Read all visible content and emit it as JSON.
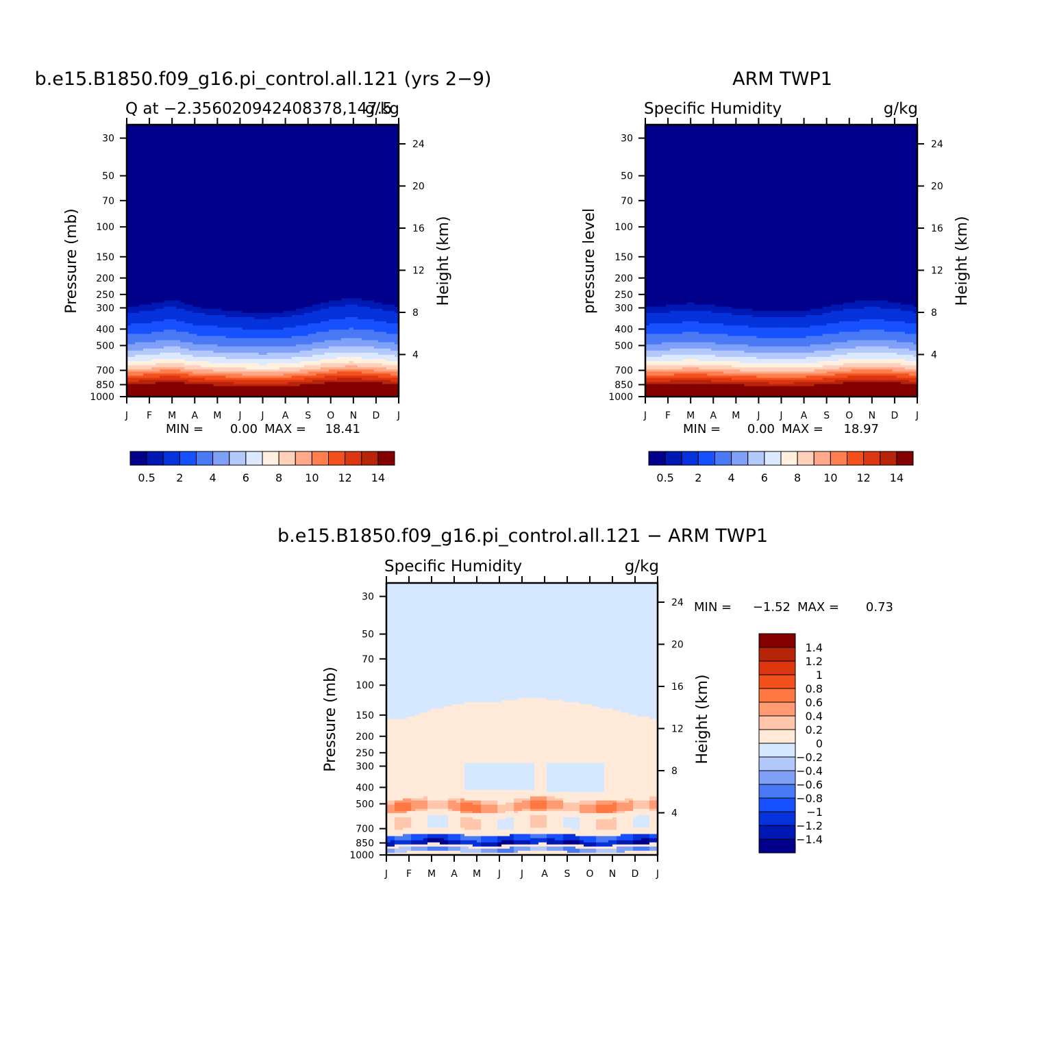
{
  "colormaps": {
    "abs": [
      "#00008b",
      "#0018b4",
      "#0532da",
      "#1750ff",
      "#4a79f5",
      "#7ea0f7",
      "#b3c9fb",
      "#dde9ff",
      "#fff0e0",
      "#ffd1bb",
      "#ffa98a",
      "#ff7f4f",
      "#f4501d",
      "#dc3610",
      "#b8240a",
      "#830000"
    ],
    "diff": [
      "#00008b",
      "#0018b4",
      "#0532da",
      "#1750ff",
      "#4a79f5",
      "#7ea0f7",
      "#b3c9fb",
      "#d6e8ff",
      "#ffe9d8",
      "#ffc6ac",
      "#ff9a73",
      "#ff7842",
      "#f4501d",
      "#dc3610",
      "#b8240a",
      "#830000"
    ]
  },
  "chart_data": [
    {
      "type": "heatmap",
      "id": "panel1",
      "title": "b.e15.B1850.f09_g16.pi_control.all.121 (yrs 2−9)",
      "subtitle_left": "Q at −2.356020942408378,147.5",
      "subtitle_right": "g/kg",
      "ylabel": "Pressure (mb)",
      "ylabel_right": "Height (km)",
      "x_ticks": [
        "J",
        "F",
        "M",
        "A",
        "M",
        "J",
        "J",
        "A",
        "S",
        "O",
        "N",
        "D",
        "J"
      ],
      "y_ticks": [
        30,
        50,
        70,
        100,
        150,
        200,
        250,
        300,
        400,
        500,
        700,
        850,
        1000
      ],
      "y_scale": "log",
      "ylim": [
        1000,
        25
      ],
      "height_ticks": [
        4,
        8,
        12,
        16,
        20,
        24
      ],
      "min_label": "MIN =",
      "min_value": "0.00",
      "max_label": "MAX =",
      "max_value": "18.41",
      "colormap": "abs",
      "contour_levels": [
        0.5,
        1,
        2,
        3,
        4,
        5,
        6,
        7,
        8,
        9,
        10,
        11,
        12,
        13,
        14
      ],
      "colorbar_labels": [
        "0.5",
        "2",
        "4",
        "6",
        "8",
        "10",
        "12",
        "14"
      ],
      "colorbar_orientation": "horizontal",
      "profile_pressure": [
        25,
        280,
        300,
        350,
        420,
        500,
        600,
        680,
        750,
        830,
        900,
        1000
      ],
      "profile_q": [
        0.0,
        0.1,
        0.6,
        1.5,
        2.8,
        4.2,
        6.5,
        8.5,
        11.0,
        13.5,
        15.5,
        18.0
      ],
      "seasonal_shift": [
        0,
        10,
        30,
        0,
        -10,
        -20,
        -25,
        -20,
        0,
        25,
        35,
        20,
        0
      ]
    },
    {
      "type": "heatmap",
      "id": "panel2",
      "title": "ARM TWP1",
      "subtitle_left": "Specific Humidity",
      "subtitle_right": "g/kg",
      "ylabel": "pressure level",
      "ylabel_right": "Height (km)",
      "x_ticks": [
        "J",
        "F",
        "M",
        "A",
        "M",
        "J",
        "J",
        "A",
        "S",
        "O",
        "N",
        "D",
        "J"
      ],
      "y_ticks": [
        30,
        50,
        70,
        100,
        150,
        200,
        250,
        300,
        400,
        500,
        700,
        850,
        1000
      ],
      "y_scale": "log",
      "ylim": [
        1000,
        25
      ],
      "height_ticks": [
        4,
        8,
        12,
        16,
        20,
        24
      ],
      "min_label": "MIN =",
      "min_value": "0.00",
      "max_label": "MAX =",
      "max_value": "18.97",
      "colormap": "abs",
      "contour_levels": [
        0.5,
        1,
        2,
        3,
        4,
        5,
        6,
        7,
        8,
        9,
        10,
        11,
        12,
        13,
        14
      ],
      "colorbar_labels": [
        "0.5",
        "2",
        "4",
        "6",
        "8",
        "10",
        "12",
        "14"
      ],
      "colorbar_orientation": "horizontal",
      "profile_pressure": [
        25,
        280,
        300,
        350,
        420,
        500,
        600,
        680,
        750,
        830,
        900,
        1000
      ],
      "profile_q": [
        0.0,
        0.1,
        0.6,
        1.5,
        2.8,
        4.2,
        6.5,
        8.5,
        11.0,
        13.5,
        15.5,
        18.5
      ],
      "seasonal_shift": [
        0,
        5,
        15,
        5,
        -5,
        -15,
        -20,
        -15,
        0,
        20,
        25,
        20,
        0
      ]
    },
    {
      "type": "heatmap",
      "id": "panel3",
      "title": "b.e15.B1850.f09_g16.pi_control.all.121 − ARM TWP1",
      "subtitle_left": "Specific Humidity",
      "subtitle_right": "g/kg",
      "ylabel": "Pressure (mb)",
      "ylabel_right": "Height (km)",
      "x_ticks": [
        "J",
        "F",
        "M",
        "A",
        "M",
        "J",
        "J",
        "A",
        "S",
        "O",
        "N",
        "D",
        "J"
      ],
      "y_ticks": [
        30,
        50,
        70,
        100,
        150,
        200,
        250,
        300,
        400,
        500,
        700,
        850,
        1000
      ],
      "y_scale": "log",
      "ylim": [
        1000,
        25
      ],
      "height_ticks": [
        4,
        8,
        12,
        16,
        20,
        24
      ],
      "min_label": "MIN =",
      "min_value": "−1.52",
      "max_label": "MAX =",
      "max_value": "0.73",
      "colormap": "diff",
      "contour_levels": [
        -1.4,
        -1.2,
        -1,
        -0.8,
        -0.6,
        -0.4,
        -0.2,
        0,
        0.2,
        0.4,
        0.6,
        0.8,
        1,
        1.2,
        1.4
      ],
      "colorbar_labels": [
        "1.4",
        "1.2",
        "1",
        "0.8",
        "0.6",
        "0.4",
        "0.2",
        "0",
        "−0.2",
        "−0.4",
        "−0.6",
        "−0.8",
        "−1",
        "−1.2",
        "−1.4"
      ],
      "colorbar_orientation": "vertical",
      "difference_field": {
        "upper_zero_boundary_mb": [
          160,
          155,
          140,
          130,
          125,
          125,
          120,
          120,
          125,
          130,
          140,
          150,
          160
        ],
        "bands": [
          {
            "pressure_top": 470,
            "pressure_bottom": 560,
            "value": 0.3
          },
          {
            "pressure_top": 490,
            "pressure_bottom": 550,
            "value": 0.5
          },
          {
            "pressure_top": 600,
            "pressure_bottom": 700,
            "value": 0.1
          },
          {
            "pressure_top": 760,
            "pressure_bottom": 870,
            "value": -0.9
          },
          {
            "pressure_top": 820,
            "pressure_bottom": 870,
            "value": -1.3
          },
          {
            "pressure_top": 900,
            "pressure_bottom": 960,
            "value": -0.5
          }
        ],
        "dry_patches": [
          {
            "month_center": 5.0,
            "month_width": 3.0,
            "pressure_top": 290,
            "pressure_bottom": 420
          },
          {
            "month_center": 8.3,
            "month_width": 2.6,
            "pressure_top": 290,
            "pressure_bottom": 430
          }
        ]
      }
    }
  ]
}
